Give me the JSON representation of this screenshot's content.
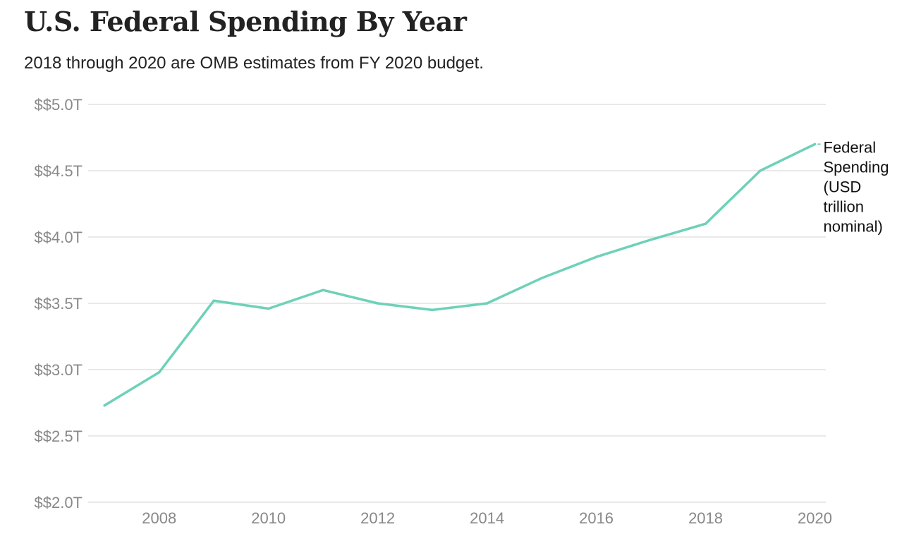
{
  "header": {
    "title": "U.S. Federal Spending By Year",
    "subtitle": "2018 through 2020 are OMB estimates from FY 2020 budget."
  },
  "colors": {
    "line": "#6ed1b8",
    "grid": "#e2e2e2",
    "tick_text": "#888888"
  },
  "chart_data": {
    "type": "line",
    "title": "U.S. Federal Spending By Year",
    "subtitle": "2018 through 2020 are OMB estimates from FY 2020 budget.",
    "xlabel": "",
    "ylabel": "",
    "x": [
      2007,
      2008,
      2009,
      2010,
      2011,
      2012,
      2013,
      2014,
      2015,
      2016,
      2017,
      2018,
      2019,
      2020
    ],
    "series": [
      {
        "name": "Federal Spending (USD trillion nominal)",
        "label_lines": [
          "Federal",
          "Spending",
          "(USD",
          "trillion",
          "nominal)"
        ],
        "values": [
          2.73,
          2.98,
          3.52,
          3.46,
          3.6,
          3.5,
          3.45,
          3.5,
          3.69,
          3.85,
          3.98,
          4.1,
          4.5,
          4.7
        ]
      }
    ],
    "xlim": [
      2006.7,
      2020.2
    ],
    "ylim": [
      2.0,
      5.0
    ],
    "x_ticks": [
      2008,
      2010,
      2012,
      2014,
      2016,
      2018,
      2020
    ],
    "x_tick_labels": [
      "2008",
      "2010",
      "2012",
      "2014",
      "2016",
      "2018",
      "2020"
    ],
    "y_ticks": [
      2.0,
      2.5,
      3.0,
      3.5,
      4.0,
      4.5,
      5.0
    ],
    "y_tick_labels": [
      "$$2.0T",
      "$$2.5T",
      "$$3.0T",
      "$$3.5T",
      "$$4.0T",
      "$$4.5T",
      "$$5.0T"
    ],
    "grid": true,
    "legend": "inline-right"
  }
}
